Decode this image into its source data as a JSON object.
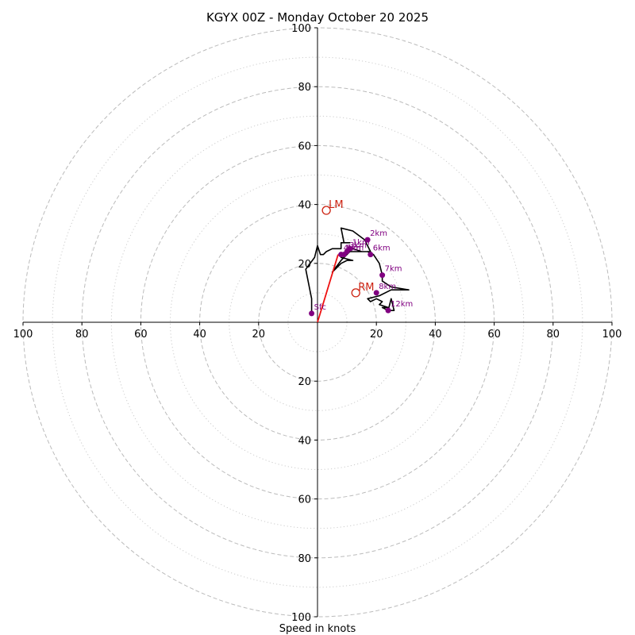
{
  "chart_data": {
    "type": "hodograph",
    "title": "KGYX 00Z - Monday October 20 2025",
    "xlabel": "Speed in knots",
    "range": [
      -100,
      100
    ],
    "ring_major": [
      20,
      40,
      60,
      80,
      100
    ],
    "ring_minor": [
      10,
      30,
      50,
      70,
      90
    ],
    "tick_labels": {
      "x": [
        {
          "value": -100,
          "label": "100"
        },
        {
          "value": -80,
          "label": "80"
        },
        {
          "value": -60,
          "label": "60"
        },
        {
          "value": -40,
          "label": "40"
        },
        {
          "value": -20,
          "label": "20"
        },
        {
          "value": 20,
          "label": "20"
        },
        {
          "value": 40,
          "label": "40"
        },
        {
          "value": 60,
          "label": "60"
        },
        {
          "value": 80,
          "label": "80"
        },
        {
          "value": 100,
          "label": "100"
        }
      ],
      "y": [
        {
          "value": 100,
          "label": "100"
        },
        {
          "value": 80,
          "label": "80"
        },
        {
          "value": 60,
          "label": "60"
        },
        {
          "value": 40,
          "label": "40"
        },
        {
          "value": 20,
          "label": "20"
        },
        {
          "value": -20,
          "label": "20"
        },
        {
          "value": -40,
          "label": "40"
        },
        {
          "value": -60,
          "label": "60"
        },
        {
          "value": -80,
          "label": "80"
        },
        {
          "value": -100,
          "label": "100"
        }
      ]
    },
    "trace": [
      [
        -2,
        3
      ],
      [
        -2,
        8
      ],
      [
        -3,
        13
      ],
      [
        -4,
        18
      ],
      [
        -1,
        22
      ],
      [
        0,
        26
      ],
      [
        1,
        23
      ],
      [
        2,
        23
      ],
      [
        3,
        24
      ],
      [
        5,
        25
      ],
      [
        8,
        25
      ],
      [
        8,
        27
      ],
      [
        11,
        27
      ],
      [
        9,
        27
      ],
      [
        8,
        32
      ],
      [
        12,
        31
      ],
      [
        16,
        28
      ],
      [
        18,
        24
      ],
      [
        16,
        24
      ],
      [
        10,
        24
      ],
      [
        8,
        22
      ],
      [
        12,
        21
      ],
      [
        10,
        21
      ],
      [
        8,
        20
      ],
      [
        7,
        19
      ],
      [
        5,
        17
      ],
      [
        8,
        21
      ],
      [
        12,
        25
      ],
      [
        15,
        24
      ],
      [
        17,
        24
      ],
      [
        19,
        23
      ],
      [
        21,
        20
      ],
      [
        22,
        16
      ],
      [
        22,
        14
      ],
      [
        25,
        12
      ],
      [
        31,
        11
      ],
      [
        25,
        11
      ],
      [
        21,
        9
      ],
      [
        17,
        8
      ],
      [
        18,
        7
      ],
      [
        20,
        8
      ],
      [
        22,
        7
      ],
      [
        21,
        6
      ],
      [
        24,
        5
      ],
      [
        22,
        5
      ],
      [
        24,
        4
      ],
      [
        25,
        8
      ],
      [
        26,
        4
      ],
      [
        24,
        4
      ]
    ],
    "shear_vector": {
      "from": [
        0,
        0
      ],
      "to": [
        7,
        23
      ],
      "color": "#ee1111"
    },
    "height_markers": [
      {
        "label": "Sfc",
        "u": -2,
        "v": 3
      },
      {
        "label": "1km",
        "u": 11,
        "v": 25
      },
      {
        "label": "2km",
        "u": 17,
        "v": 28
      },
      {
        "label": "3km",
        "u": 10,
        "v": 24
      },
      {
        "label": "4km",
        "u": 8,
        "v": 23
      },
      {
        "label": "5km",
        "u": 9,
        "v": 23
      },
      {
        "label": "6km",
        "u": 18,
        "v": 23
      },
      {
        "label": "7km",
        "u": 22,
        "v": 16
      },
      {
        "label": "8km",
        "u": 20,
        "v": 10
      },
      {
        "label": "12km",
        "u": 24,
        "v": 4
      }
    ],
    "storm_motion": [
      {
        "label": "LM",
        "u": 3,
        "v": 38
      },
      {
        "label": "RM",
        "u": 13,
        "v": 10
      }
    ],
    "colors": {
      "trace": "#000000",
      "marker": "#800080",
      "storm": "#cc2211",
      "major_ring": "#bbbbbb",
      "minor_ring": "#cccccc",
      "axis": "#000000"
    }
  }
}
